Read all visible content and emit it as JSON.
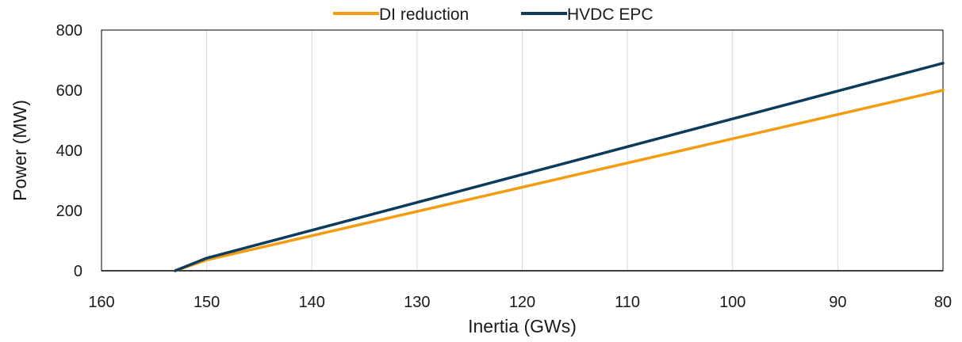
{
  "chart_data": {
    "type": "line",
    "title": "",
    "xlabel": "Inertia (GWs)",
    "ylabel": "Power (MW)",
    "x_reversed": true,
    "xlim": [
      160,
      80
    ],
    "ylim": [
      0,
      800
    ],
    "x_ticks": [
      "160",
      "150",
      "140",
      "130",
      "120",
      "110",
      "100",
      "90",
      "80"
    ],
    "y_ticks": [
      "0",
      "200",
      "400",
      "600",
      "800"
    ],
    "grid": "vertical",
    "legend_position": "top",
    "series": [
      {
        "name": "DI reduction",
        "color": "#F39C12",
        "x": [
          153,
          150,
          80
        ],
        "y": [
          0,
          36,
          600
        ]
      },
      {
        "name": "HVDC EPC",
        "color": "#0D3B5C",
        "x": [
          153,
          150,
          80
        ],
        "y": [
          0,
          42,
          690
        ]
      }
    ]
  }
}
